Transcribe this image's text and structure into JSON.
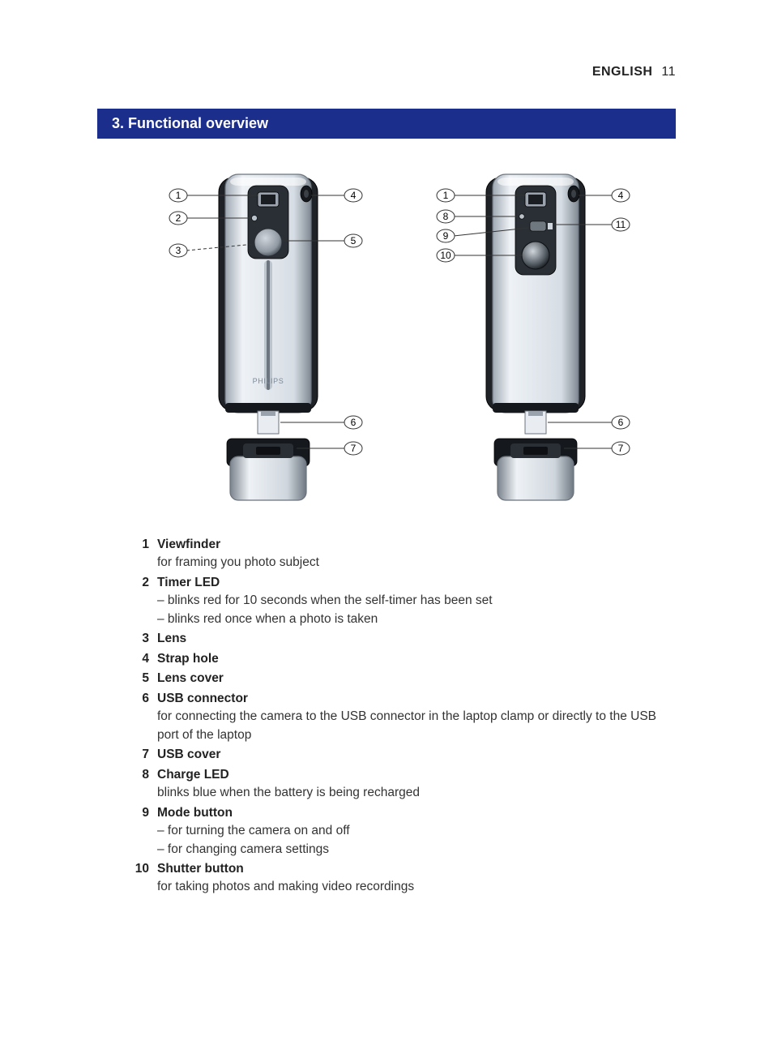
{
  "header": {
    "language": "ENGLISH",
    "page_number": "11"
  },
  "section": {
    "title": "3. Functional overview",
    "bar_color": "#1b2e8c",
    "bar_text_color": "#ffffff"
  },
  "diagrams": {
    "callout_font_size": 12,
    "callout_stroke": "#333333",
    "device_body_fill": "#dde3e8",
    "device_body_fill_light": "#f3f6f9",
    "device_dark_fill": "#222529",
    "device_mid_fill": "#9aa3ad",
    "brand_text": "PHILIPS",
    "front": {
      "callouts": [
        "1",
        "2",
        "3",
        "4",
        "5",
        "6",
        "7"
      ]
    },
    "back": {
      "callouts": [
        "1",
        "8",
        "9",
        "10",
        "4",
        "11",
        "6",
        "7"
      ]
    }
  },
  "items": [
    {
      "num": "1",
      "title": "Viewfinder",
      "desc": [
        "for framing you photo subject"
      ]
    },
    {
      "num": "2",
      "title": "Timer LED",
      "desc": [
        "– blinks red for 10 seconds when the self-timer has been set",
        "– blinks red once when a photo is taken"
      ]
    },
    {
      "num": "3",
      "title": "Lens",
      "desc": []
    },
    {
      "num": "4",
      "title": "Strap hole",
      "desc": []
    },
    {
      "num": "5",
      "title": "Lens cover",
      "desc": []
    },
    {
      "num": "6",
      "title": "USB connector",
      "desc": [
        "for connecting the camera to the USB connector in the laptop clamp or directly to the USB port of the laptop"
      ]
    },
    {
      "num": "7",
      "title": "USB cover",
      "desc": []
    },
    {
      "num": "8",
      "title": "Charge LED",
      "desc": [
        "blinks blue when the battery is being recharged"
      ]
    },
    {
      "num": "9",
      "title": "Mode button",
      "desc": [
        "– for turning the camera on and off",
        "– for changing camera settings"
      ]
    },
    {
      "num": "10",
      "title": "Shutter button",
      "desc": [
        "for taking photos and making video recordings"
      ]
    }
  ]
}
